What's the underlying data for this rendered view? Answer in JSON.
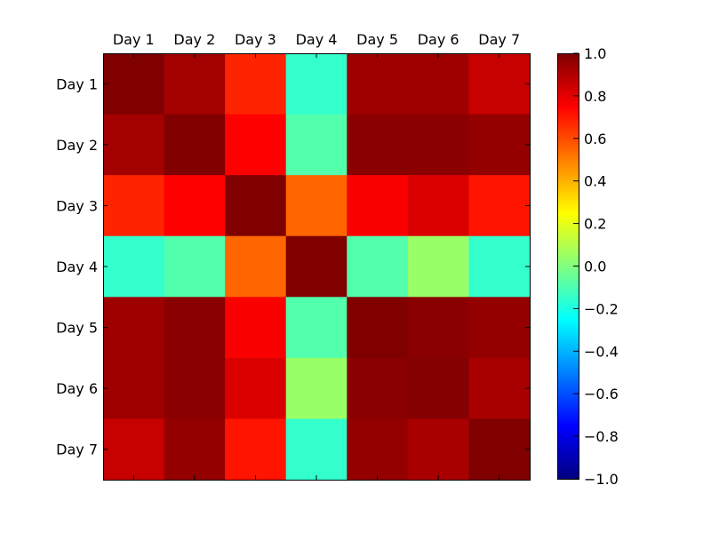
{
  "chart_data": {
    "type": "heatmap",
    "title": "",
    "xlabel": "",
    "ylabel": "",
    "x_categories": [
      "Day 1",
      "Day 2",
      "Day 3",
      "Day 4",
      "Day 5",
      "Day 6",
      "Day 7"
    ],
    "y_categories": [
      "Day 1",
      "Day 2",
      "Day 3",
      "Day 4",
      "Day 5",
      "Day 6",
      "Day 7"
    ],
    "x_tick_position": "top",
    "colormap": "jet",
    "vmin": -1.0,
    "vmax": 1.0,
    "values": [
      [
        1.0,
        0.93,
        0.68,
        -0.15,
        0.94,
        0.94,
        0.86
      ],
      [
        0.93,
        1.0,
        0.75,
        -0.09,
        0.98,
        0.98,
        0.96
      ],
      [
        0.68,
        0.75,
        1.0,
        0.55,
        0.76,
        0.82,
        0.71
      ],
      [
        -0.15,
        -0.09,
        0.55,
        1.0,
        -0.09,
        0.05,
        -0.15
      ],
      [
        0.94,
        0.98,
        0.76,
        -0.09,
        1.0,
        0.98,
        0.96
      ],
      [
        0.94,
        0.98,
        0.82,
        0.05,
        0.98,
        0.99,
        0.92
      ],
      [
        0.86,
        0.96,
        0.71,
        -0.15,
        0.96,
        0.92,
        1.0
      ]
    ],
    "colorbar": {
      "ticks": [
        -1.0,
        -0.8,
        -0.6,
        -0.4,
        -0.2,
        0.0,
        0.2,
        0.4,
        0.6,
        0.8,
        1.0
      ],
      "tick_labels": [
        "−1.0",
        "−0.8",
        "−0.6",
        "−0.4",
        "−0.2",
        "0.0",
        "0.2",
        "0.4",
        "0.6",
        "0.8",
        "1.0"
      ]
    },
    "grid": false
  }
}
